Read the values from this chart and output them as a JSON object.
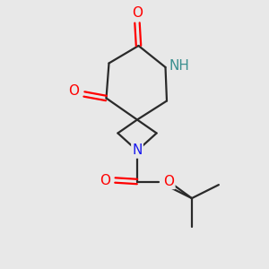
{
  "background_color": "#e8e8e8",
  "bond_color": "#2a2a2a",
  "atom_colors": {
    "O": "#ff0000",
    "N_blue": "#1a1aee",
    "N_teal": "#3a8f8f",
    "C": "#2a2a2a"
  },
  "figsize": [
    3.0,
    3.0
  ],
  "dpi": 100
}
